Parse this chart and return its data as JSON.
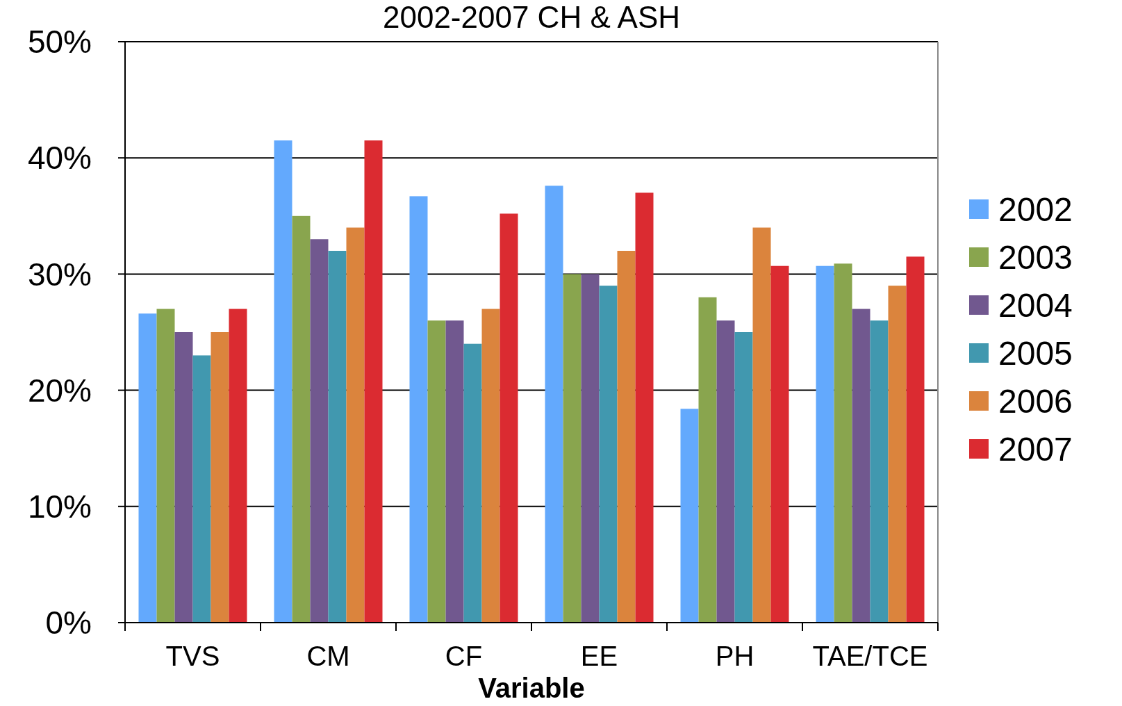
{
  "chart_data": {
    "type": "bar",
    "title": "2002-2007 CH & ASH",
    "xlabel": "Variable",
    "categories": [
      "TVS",
      "CM",
      "CF",
      "EE",
      "PH",
      "TAE/TCE"
    ],
    "series": [
      {
        "name": "2002",
        "color": "#63a9fd",
        "values": [
          26.6,
          41.5,
          36.7,
          37.6,
          18.4,
          30.7
        ]
      },
      {
        "name": "2003",
        "color": "#89a54e",
        "values": [
          27,
          35,
          26,
          30,
          28,
          30.9
        ]
      },
      {
        "name": "2004",
        "color": "#71588f",
        "values": [
          25,
          33,
          26,
          30,
          26,
          27
        ]
      },
      {
        "name": "2005",
        "color": "#4198af",
        "values": [
          23,
          32,
          24,
          29,
          25,
          26
        ]
      },
      {
        "name": "2006",
        "color": "#db843d",
        "values": [
          25,
          34,
          27,
          32,
          34,
          29
        ]
      },
      {
        "name": "2007",
        "color": "#db2b31",
        "values": [
          27,
          41.5,
          35.2,
          37,
          30.7,
          31.5
        ]
      }
    ],
    "ylim": [
      0,
      50
    ],
    "yticks": [
      {
        "value": 0,
        "label": "0%"
      },
      {
        "value": 10,
        "label": "10%"
      },
      {
        "value": 20,
        "label": "20%"
      },
      {
        "value": 30,
        "label": "30%"
      },
      {
        "value": 40,
        "label": "40%"
      },
      {
        "value": 50,
        "label": "50%"
      }
    ],
    "grid": "y",
    "legend": "right"
  }
}
